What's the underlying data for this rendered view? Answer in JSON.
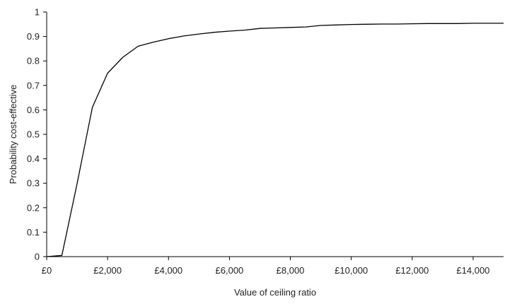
{
  "chart_data": {
    "type": "line",
    "title": "",
    "xlabel": "Value of ceiling ratio",
    "ylabel": "Probability cost-effective",
    "xlim": [
      0,
      15000
    ],
    "ylim": [
      0,
      1
    ],
    "x_ticks": [
      0,
      2000,
      4000,
      6000,
      8000,
      10000,
      12000,
      14000
    ],
    "x_tick_labels": [
      "£0",
      "£2,000",
      "£4,000",
      "£6,000",
      "£8,000",
      "£10,000",
      "£12,000",
      "£14,000"
    ],
    "y_ticks": [
      0,
      0.1,
      0.2,
      0.3,
      0.4,
      0.5,
      0.6,
      0.7,
      0.8,
      0.9,
      1
    ],
    "y_tick_labels": [
      "0",
      "0.1",
      "0.2",
      "0.3",
      "0.4",
      "0.5",
      "0.6",
      "0.7",
      "0.8",
      "0.9",
      "1"
    ],
    "grid": false,
    "legend": "none",
    "line_color": "#000000",
    "series": [
      {
        "x": [
          0,
          500,
          1000,
          1500,
          2000,
          2500,
          3000,
          3500,
          4000,
          4500,
          5000,
          5500,
          6000,
          6500,
          7000,
          7500,
          8000,
          8500,
          9000,
          9500,
          10000,
          10500,
          11000,
          11500,
          12000,
          12500,
          13000,
          13500,
          14000,
          14500,
          15000
        ],
        "y": [
          0,
          0.005,
          0.3,
          0.61,
          0.75,
          0.815,
          0.86,
          0.877,
          0.891,
          0.902,
          0.91,
          0.917,
          0.922,
          0.926,
          0.933,
          0.935,
          0.937,
          0.939,
          0.945,
          0.947,
          0.949,
          0.95,
          0.951,
          0.951,
          0.952,
          0.953,
          0.953,
          0.953,
          0.954,
          0.954,
          0.954
        ]
      }
    ]
  }
}
